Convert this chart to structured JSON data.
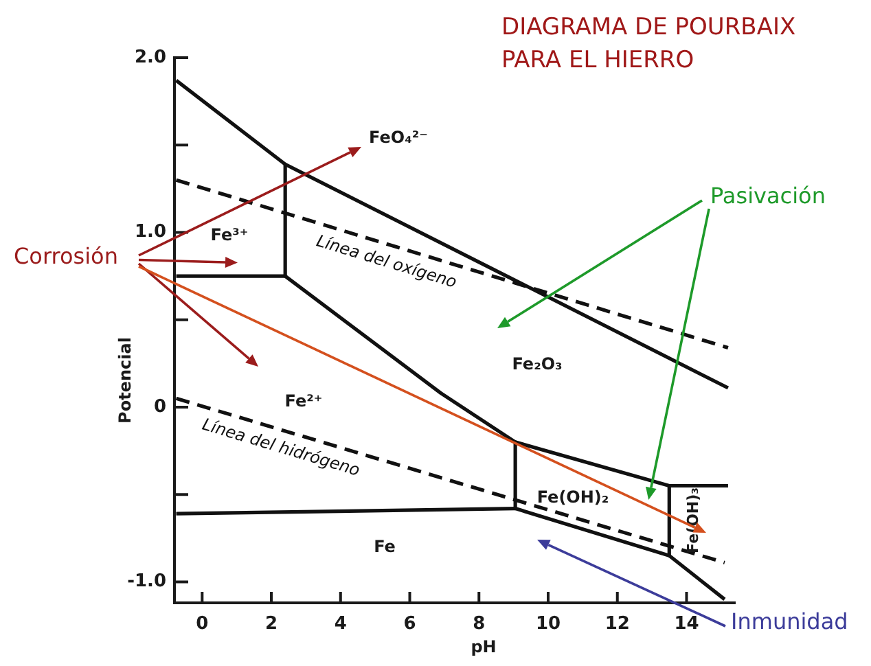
{
  "chart_data": {
    "type": "line",
    "title": "DIAGRAMA DE POURBAIX PARA EL HIERRO",
    "xlabel": "pH",
    "ylabel": "Potencial",
    "xlim": [
      -0.8,
      15.4
    ],
    "ylim": [
      -1.12,
      2.0
    ],
    "xticks": [
      0,
      2,
      4,
      6,
      8,
      10,
      12,
      14
    ],
    "yticks": [
      {
        "value": -1,
        "label": "-1.0"
      },
      {
        "value": -0.5,
        "label": null
      },
      0,
      {
        "value": 0.5,
        "label": null
      },
      {
        "value": 1,
        "label": "1.0"
      },
      {
        "value": 1.5,
        "label": null
      },
      {
        "value": 2,
        "label": "2.0"
      }
    ],
    "series": [
      {
        "color": "#111111",
        "line_style": "solid",
        "x": [
          -0.75,
          2.4,
          15.2
        ],
        "values": [
          1.87,
          1.39,
          0.11
        ]
      },
      {
        "color": "#111111",
        "line_style": "solid",
        "x": [
          2.4,
          2.4
        ],
        "values": [
          1.39,
          0.75
        ]
      },
      {
        "color": "#111111",
        "line_style": "solid",
        "x": [
          -0.75,
          2.4,
          6.9,
          9.05,
          13.5,
          15.2
        ],
        "values": [
          0.75,
          0.75,
          0.08,
          -0.2,
          -0.45,
          -0.45
        ]
      },
      {
        "color": "#111111",
        "line_style": "solid",
        "x": [
          9.05,
          9.05
        ],
        "values": [
          -0.2,
          -0.58
        ]
      },
      {
        "color": "#111111",
        "line_style": "solid",
        "x": [
          -0.75,
          9.05,
          13.5,
          15.1
        ],
        "values": [
          -0.61,
          -0.58,
          -0.85,
          -1.1
        ]
      },
      {
        "color": "#111111",
        "line_style": "solid",
        "x": [
          13.5,
          13.5
        ],
        "values": [
          -0.45,
          -0.85
        ]
      },
      {
        "name": "Línea del oxígeno",
        "color": "#111111",
        "line_style": "dashed",
        "x": [
          -0.75,
          15.2
        ],
        "values": [
          1.3,
          0.34
        ]
      },
      {
        "name": "Línea del hidrógeno",
        "color": "#111111",
        "line_style": "dashed",
        "x": [
          -0.75,
          15.1
        ],
        "values": [
          0.05,
          -0.89
        ]
      }
    ],
    "annotations": [
      "FeO₄²⁻",
      "Fe³⁺",
      "Fe²⁺",
      "Fe₂O₃",
      "Fe(OH)₂",
      "Fe(OH)₃",
      "Fe",
      "Corrosión",
      "Pasivación",
      "Inmunidad"
    ]
  }
}
